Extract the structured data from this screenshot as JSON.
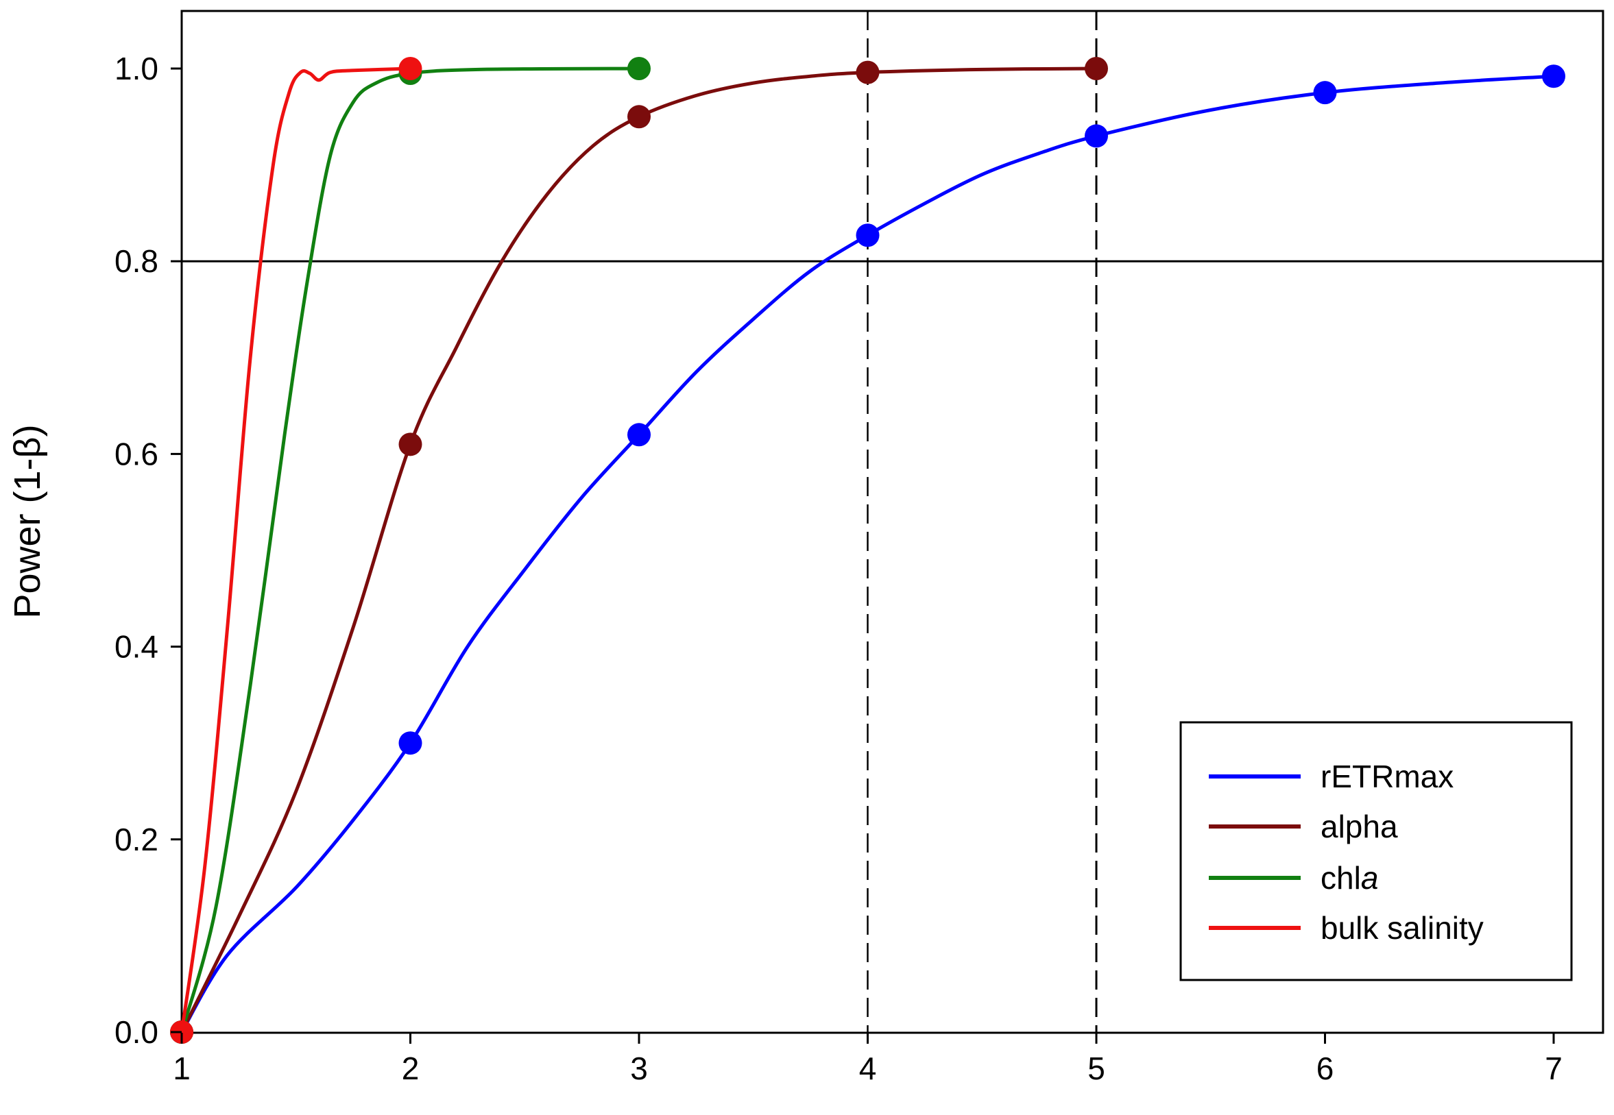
{
  "chart_data": {
    "type": "line",
    "title": "",
    "xlabel": "",
    "ylabel": "Power (1-β)",
    "xlim": [
      1,
      7.2
    ],
    "ylim": [
      0,
      1.1
    ],
    "x_ticks": [
      "1",
      "2",
      "3",
      "4",
      "5",
      "6",
      "7"
    ],
    "y_ticks": [
      "0.0",
      "0.2",
      "0.4",
      "0.6",
      "0.8",
      "1.0"
    ],
    "reference_lines": {
      "horizontal": [
        0.8
      ],
      "vertical_dashed": [
        4,
        5
      ]
    },
    "legend": {
      "placement": "bottom-right"
    },
    "grid": false,
    "series": [
      {
        "name": "rETRmax",
        "color": "#0000ff",
        "points": [
          [
            1,
            0.0
          ],
          [
            2,
            0.3
          ],
          [
            3,
            0.62
          ],
          [
            4,
            0.827
          ],
          [
            5,
            0.93
          ],
          [
            6,
            0.975
          ],
          [
            7,
            0.992
          ]
        ],
        "curve": [
          [
            1,
            0.0
          ],
          [
            1.2,
            0.08
          ],
          [
            1.5,
            0.15
          ],
          [
            1.75,
            0.22
          ],
          [
            2,
            0.3
          ],
          [
            2.25,
            0.4
          ],
          [
            2.5,
            0.48
          ],
          [
            2.75,
            0.555
          ],
          [
            3,
            0.62
          ],
          [
            3.25,
            0.685
          ],
          [
            3.5,
            0.74
          ],
          [
            3.75,
            0.79
          ],
          [
            4,
            0.827
          ],
          [
            4.25,
            0.86
          ],
          [
            4.5,
            0.89
          ],
          [
            4.75,
            0.912
          ],
          [
            5,
            0.93
          ],
          [
            5.5,
            0.957
          ],
          [
            6,
            0.975
          ],
          [
            6.5,
            0.985
          ],
          [
            7,
            0.992
          ]
        ]
      },
      {
        "name": "alpha",
        "color": "#7b0c0c",
        "points": [
          [
            1,
            0.0
          ],
          [
            2,
            0.61
          ],
          [
            3,
            0.95
          ],
          [
            4,
            0.996
          ],
          [
            5,
            1.0
          ]
        ],
        "curve": [
          [
            1,
            0.0
          ],
          [
            1.25,
            0.12
          ],
          [
            1.5,
            0.25
          ],
          [
            1.75,
            0.42
          ],
          [
            2,
            0.61
          ],
          [
            2.2,
            0.71
          ],
          [
            2.4,
            0.8
          ],
          [
            2.6,
            0.87
          ],
          [
            2.8,
            0.92
          ],
          [
            3,
            0.95
          ],
          [
            3.25,
            0.972
          ],
          [
            3.5,
            0.985
          ],
          [
            3.75,
            0.992
          ],
          [
            4,
            0.996
          ],
          [
            4.5,
            0.999
          ],
          [
            5,
            1.0
          ]
        ]
      },
      {
        "name": "chla",
        "color": "#118011",
        "points": [
          [
            1,
            0.0
          ],
          [
            2,
            0.995
          ],
          [
            3,
            1.0
          ]
        ],
        "curve": [
          [
            1,
            0.0
          ],
          [
            1.15,
            0.13
          ],
          [
            1.3,
            0.36
          ],
          [
            1.45,
            0.62
          ],
          [
            1.55,
            0.78
          ],
          [
            1.65,
            0.91
          ],
          [
            1.75,
            0.965
          ],
          [
            1.85,
            0.985
          ],
          [
            2,
            0.995
          ],
          [
            2.3,
            0.999
          ],
          [
            3,
            1.0
          ]
        ]
      },
      {
        "name": "bulk salinity",
        "color": "#ee1111",
        "points": [
          [
            1,
            0.0
          ],
          [
            2,
            1.0
          ]
        ],
        "curve": [
          [
            1,
            0.0
          ],
          [
            1.1,
            0.17
          ],
          [
            1.2,
            0.42
          ],
          [
            1.3,
            0.7
          ],
          [
            1.4,
            0.9
          ],
          [
            1.47,
            0.975
          ],
          [
            1.52,
            0.996
          ],
          [
            1.56,
            0.995
          ],
          [
            1.6,
            0.988
          ],
          [
            1.65,
            0.996
          ],
          [
            1.75,
            0.998
          ],
          [
            2,
            1.0
          ]
        ]
      }
    ]
  },
  "legend_labels": {
    "rETRmax": "rETRmax",
    "alpha": "alpha",
    "chla_prefix": "chl",
    "chla_italic": "a",
    "bulk_salinity": "bulk salinity"
  }
}
